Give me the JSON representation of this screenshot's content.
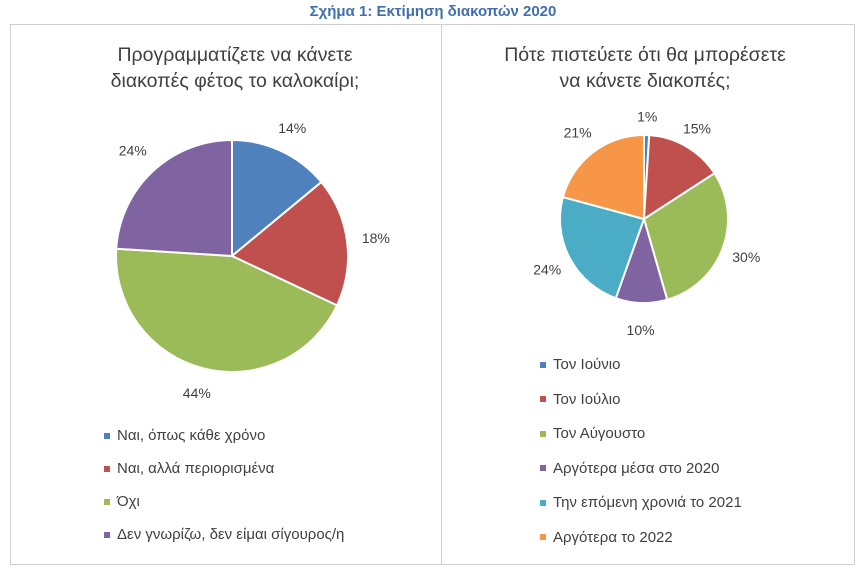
{
  "figure_title": "Σχήμα 1: Εκτίμηση διακοπών 2020",
  "chart_data": [
    {
      "type": "pie",
      "title_lines": [
        "Προγραμματίζετε να κάνετε",
        "διακοπές φέτος το καλοκαίρι;"
      ],
      "categories": [
        "Ναι, όπως κάθε χρόνο",
        "Ναι, αλλά περιορισμένα",
        "Όχι",
        "Δεν γνωρίζω, δεν είμαι σίγουρος/η"
      ],
      "values": [
        14,
        18,
        44,
        24
      ],
      "labels": [
        "14%",
        "18%",
        "44%",
        "24%"
      ],
      "colors": [
        "#4F81BD",
        "#C0504D",
        "#9BBB59",
        "#8064A2"
      ],
      "legend": "bottom"
    },
    {
      "type": "pie",
      "title_lines": [
        "Πότε πιστεύετε ότι θα μπορέσετε",
        "να κάνετε διακοπές;"
      ],
      "categories": [
        "Τον Ιούνιο",
        "Τον Ιούλιο",
        "Τον Αύγουστο",
        "Αργότερα μέσα στο 2020",
        "Την επόμενη χρονιά το 2021",
        "Αργότερα το 2022"
      ],
      "values": [
        1,
        15,
        30,
        10,
        24,
        21
      ],
      "labels": [
        "1%",
        "15%",
        "30%",
        "10%",
        "24%",
        "21%"
      ],
      "colors": [
        "#4F81BD",
        "#C0504D",
        "#9BBB59",
        "#8064A2",
        "#4BACC6",
        "#F79646"
      ],
      "legend": "bottom"
    }
  ]
}
